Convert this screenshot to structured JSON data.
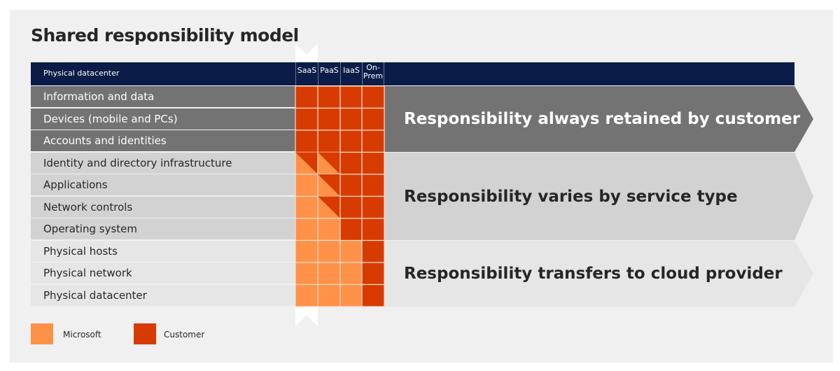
{
  "title": "Shared responsibility model",
  "header": {
    "label": "Physical datacenter",
    "columns": [
      "SaaS",
      "PaaS",
      "IaaS",
      "On-\nPrem"
    ]
  },
  "colors": {
    "customer": "#d83b01",
    "microsoft": "#ff9148",
    "navy": "#0b1c48"
  },
  "rows": [
    {
      "label": "Information and data",
      "cells": [
        "customer",
        "customer",
        "customer",
        "customer"
      ]
    },
    {
      "label": "Devices (mobile and PCs)",
      "cells": [
        "customer",
        "customer",
        "customer",
        "customer"
      ]
    },
    {
      "label": "Accounts and identities",
      "cells": [
        "customer",
        "customer",
        "customer",
        "customer"
      ]
    },
    {
      "label": "Identity and directory infrastructure",
      "cells": [
        "shared",
        "shared",
        "customer",
        "customer"
      ]
    },
    {
      "label": "Applications",
      "cells": [
        "microsoft",
        "shared",
        "customer",
        "customer"
      ]
    },
    {
      "label": "Network controls",
      "cells": [
        "microsoft",
        "shared",
        "customer",
        "customer"
      ]
    },
    {
      "label": "Operating system",
      "cells": [
        "microsoft",
        "microsoft",
        "customer",
        "customer"
      ]
    },
    {
      "label": "Physical hosts",
      "cells": [
        "microsoft",
        "microsoft",
        "microsoft",
        "customer"
      ]
    },
    {
      "label": "Physical network",
      "cells": [
        "microsoft",
        "microsoft",
        "microsoft",
        "customer"
      ]
    },
    {
      "label": "Physical datacenter",
      "cells": [
        "microsoft",
        "microsoft",
        "microsoft",
        "customer"
      ]
    }
  ],
  "arrows": [
    "Responsibility always retained by customer",
    "Responsibility varies by service type",
    "Responsibility transfers to cloud provider"
  ],
  "legend": [
    {
      "label": "Microsoft",
      "key": "microsoft"
    },
    {
      "label": "Customer",
      "key": "customer"
    }
  ]
}
